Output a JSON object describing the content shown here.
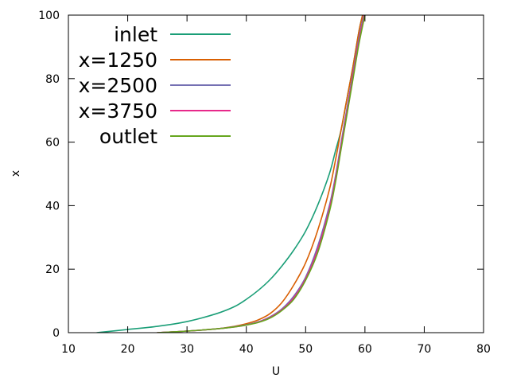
{
  "chart_data": {
    "type": "line",
    "title": "",
    "xlabel": "U",
    "ylabel": "x",
    "xlim": [
      10,
      80
    ],
    "ylim": [
      0,
      100
    ],
    "xticks": [
      "10",
      "20",
      "30",
      "40",
      "50",
      "60",
      "70",
      "80"
    ],
    "yticks": [
      "0",
      "20",
      "40",
      "60",
      "80",
      "100"
    ],
    "grid": false,
    "legend_position": "top-left",
    "series": [
      {
        "name": "inlet",
        "color": "#1a9e77",
        "x": [
          14.8,
          20,
          25,
          30,
          35,
          38,
          40,
          42,
          44,
          46,
          48,
          50,
          52,
          54,
          55,
          56,
          57,
          58,
          59,
          59.6
        ],
        "y": [
          0,
          1,
          2,
          3.5,
          6,
          8.2,
          10.5,
          13.3,
          16.7,
          21,
          26,
          32,
          40,
          50,
          57,
          64,
          74,
          84,
          95,
          100
        ]
      },
      {
        "name": "x=1250",
        "color": "#d95f02",
        "x": [
          25,
          30,
          35,
          38,
          40,
          42,
          44,
          46,
          48,
          50,
          52,
          54,
          55,
          56,
          57,
          58,
          59,
          59.6
        ],
        "y": [
          0,
          0.5,
          1.2,
          2,
          2.8,
          4,
          6,
          9.5,
          15,
          22,
          32,
          45,
          54,
          64,
          74,
          84,
          95,
          100
        ]
      },
      {
        "name": "x=2500",
        "color": "#7570b3",
        "x": [
          25,
          30,
          35,
          38,
          40,
          42,
          44,
          46,
          48,
          50,
          52,
          54,
          55,
          56,
          57,
          58,
          59,
          59.8
        ],
        "y": [
          0,
          0.5,
          1.2,
          1.9,
          2.5,
          3.4,
          5,
          7.5,
          11.5,
          17.5,
          27,
          40,
          49,
          60,
          71,
          82,
          93,
          100
        ]
      },
      {
        "name": "x=3750",
        "color": "#e7298a",
        "x": [
          25,
          30,
          35,
          38,
          40,
          42,
          44,
          46,
          48,
          50,
          52,
          54,
          55,
          56,
          57,
          58,
          59,
          59.9
        ],
        "y": [
          0,
          0.5,
          1.2,
          1.8,
          2.4,
          3.3,
          4.8,
          7.2,
          11,
          17,
          26,
          39,
          48,
          59,
          70,
          81,
          92,
          100
        ]
      },
      {
        "name": "outlet",
        "color": "#66a61e",
        "x": [
          25,
          30,
          35,
          38,
          40,
          42,
          44,
          46,
          48,
          50,
          52,
          54,
          55,
          56,
          57,
          58,
          59,
          60
        ],
        "y": [
          0,
          0.5,
          1.2,
          1.8,
          2.4,
          3.2,
          4.6,
          7,
          10.5,
          16.5,
          25,
          38,
          47,
          58,
          69,
          80,
          91,
          100
        ]
      }
    ]
  }
}
